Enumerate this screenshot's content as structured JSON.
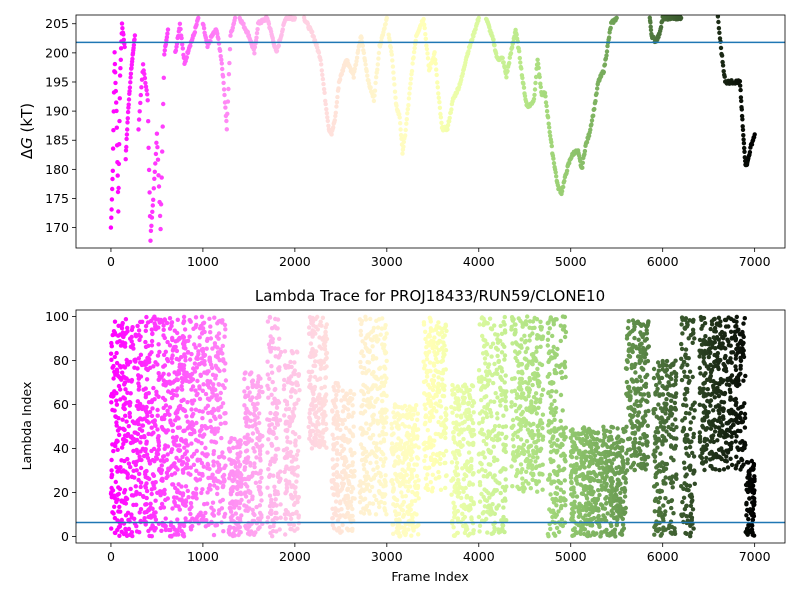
{
  "chart_data": [
    {
      "type": "scatter",
      "title": "",
      "xlabel": "",
      "ylabel_prefix": "Δ",
      "ylabel_var": "G",
      "ylabel_suffix": " (kT)",
      "xlim": [
        -380,
        7330
      ],
      "ylim": [
        166.5,
        206.5
      ],
      "xticks": [
        0,
        1000,
        2000,
        3000,
        4000,
        5000,
        6000,
        7000
      ],
      "yticks": [
        170,
        175,
        180,
        185,
        190,
        195,
        200,
        205
      ],
      "hline": 201.8,
      "hline_color": "#1f77b4",
      "colormap": "rainbow",
      "x_max": 7000,
      "series": [
        {
          "x": [
            0,
            20,
            40,
            60,
            80,
            100,
            120,
            150
          ],
          "y": [
            170,
            180,
            200,
            190,
            173,
            196,
            205,
            201
          ]
        },
        {
          "x": [
            160,
            180,
            200,
            220,
            240,
            260
          ],
          "y": [
            182,
            188,
            193,
            197,
            200,
            203
          ]
        },
        {
          "x": [
            300,
            350,
            400,
            430,
            460,
            500,
            540,
            580,
            620
          ],
          "y": [
            187,
            198,
            192,
            168,
            175,
            186,
            170,
            200,
            204
          ]
        },
        {
          "x": [
            700,
            750,
            800,
            850,
            900,
            950
          ],
          "y": [
            200,
            205,
            198,
            201,
            203,
            206
          ]
        },
        {
          "x": [
            1000,
            1050,
            1100,
            1150,
            1200,
            1230,
            1260,
            1300,
            1350
          ],
          "y": [
            205,
            201,
            203,
            204,
            199,
            194,
            187,
            203,
            206
          ]
        },
        {
          "x": [
            1400,
            1500,
            1560,
            1600,
            1700,
            1800,
            1850,
            1900,
            2000
          ],
          "y": [
            206,
            203,
            200,
            205,
            206,
            200,
            203,
            206,
            206
          ]
        },
        {
          "x": [
            2100,
            2200,
            2280,
            2330,
            2370,
            2400,
            2440,
            2480,
            2560,
            2640,
            2720,
            2800,
            2860,
            2920,
            3000
          ],
          "y": [
            206,
            203,
            199,
            192,
            187,
            186,
            189,
            195,
            199,
            196,
            203,
            195,
            192,
            201,
            206
          ]
        },
        {
          "x": [
            3020,
            3060,
            3100,
            3140,
            3170,
            3200,
            3240,
            3280,
            3320,
            3400,
            3460,
            3520,
            3560,
            3600,
            3660,
            3720,
            3780,
            3820,
            3860,
            3900,
            3960,
            4000
          ],
          "y": [
            203,
            199,
            191,
            189,
            183,
            186,
            192,
            198,
            203,
            206,
            197,
            200,
            193,
            187,
            187,
            192,
            194,
            196,
            199,
            201,
            204,
            206
          ]
        },
        {
          "x": [
            4080,
            4120,
            4160,
            4200,
            4260,
            4300,
            4350,
            4400,
            4440,
            4480,
            4520,
            4560,
            4600,
            4640,
            4680,
            4720,
            4760,
            4800,
            4860,
            4900,
            4960,
            5000,
            5040,
            5080,
            5120,
            5160,
            5200,
            5250,
            5300,
            5360,
            5400,
            5440,
            5500
          ],
          "y": [
            206,
            204,
            202,
            199,
            199,
            196,
            200,
            204,
            200,
            195,
            191,
            191,
            192,
            199,
            193,
            193,
            188,
            183,
            177,
            176,
            180,
            182,
            183,
            183,
            180,
            184,
            186,
            190,
            195,
            197,
            201,
            205,
            206
          ]
        },
        {
          "x": [
            5860,
            5880,
            5920,
            5960,
            6000,
            6200
          ],
          "y": [
            206,
            203,
            202,
            203,
            206,
            206
          ]
        },
        {
          "x": [
            6600,
            6640,
            6680,
            6720,
            6760,
            6800,
            6840,
            6860,
            6880,
            6900,
            6920,
            6960,
            7000
          ],
          "y": [
            206,
            200,
            195,
            195,
            195,
            195,
            195,
            190,
            185,
            181,
            181,
            184,
            186
          ]
        }
      ]
    },
    {
      "type": "scatter",
      "title": "Lambda Trace for PROJ18433/RUN59/CLONE10",
      "xlabel": "Frame Index",
      "ylabel": "Lambda Index",
      "xlim": [
        -380,
        7330
      ],
      "ylim": [
        -3,
        103
      ],
      "xticks": [
        0,
        1000,
        2000,
        3000,
        4000,
        5000,
        6000,
        7000
      ],
      "yticks": [
        0,
        20,
        40,
        60,
        80,
        100
      ],
      "hline": 6.3,
      "hline_color": "#1f77b4",
      "colormap": "rainbow",
      "x_max": 7000,
      "bands": [
        {
          "x_start": 0,
          "x_end": 60,
          "y_min": 0,
          "y_max": 100
        },
        {
          "x_start": 60,
          "x_end": 700,
          "y_min": 0,
          "y_max": 100
        },
        {
          "x_start": 700,
          "x_end": 1250,
          "y_min": 0,
          "y_max": 100
        },
        {
          "x_start": 1280,
          "x_end": 1420,
          "y_min": 0,
          "y_max": 45
        },
        {
          "x_start": 1450,
          "x_end": 1650,
          "y_min": 0,
          "y_max": 75
        },
        {
          "x_start": 1700,
          "x_end": 1850,
          "y_min": 0,
          "y_max": 100
        },
        {
          "x_start": 1880,
          "x_end": 2050,
          "y_min": 0,
          "y_max": 85
        },
        {
          "x_start": 2150,
          "x_end": 2350,
          "y_min": 40,
          "y_max": 100
        },
        {
          "x_start": 2400,
          "x_end": 2650,
          "y_min": 0,
          "y_max": 70
        },
        {
          "x_start": 2700,
          "x_end": 3000,
          "y_min": 10,
          "y_max": 100
        },
        {
          "x_start": 3050,
          "x_end": 3350,
          "y_min": 0,
          "y_max": 60
        },
        {
          "x_start": 3400,
          "x_end": 3650,
          "y_min": 20,
          "y_max": 100
        },
        {
          "x_start": 3700,
          "x_end": 3950,
          "y_min": 0,
          "y_max": 70
        },
        {
          "x_start": 4000,
          "x_end": 4300,
          "y_min": 0,
          "y_max": 100
        },
        {
          "x_start": 4350,
          "x_end": 4700,
          "y_min": 20,
          "y_max": 100
        },
        {
          "x_start": 4750,
          "x_end": 4950,
          "y_min": 0,
          "y_max": 100
        },
        {
          "x_start": 5000,
          "x_end": 5600,
          "y_min": 0,
          "y_max": 50
        },
        {
          "x_start": 5600,
          "x_end": 5850,
          "y_min": 30,
          "y_max": 100
        },
        {
          "x_start": 5900,
          "x_end": 6150,
          "y_min": 0,
          "y_max": 80
        },
        {
          "x_start": 6200,
          "x_end": 6350,
          "y_min": 0,
          "y_max": 100
        },
        {
          "x_start": 6400,
          "x_end": 6900,
          "y_min": 30,
          "y_max": 100
        },
        {
          "x_start": 6900,
          "x_end": 7000,
          "y_min": 0,
          "y_max": 35
        }
      ]
    }
  ]
}
